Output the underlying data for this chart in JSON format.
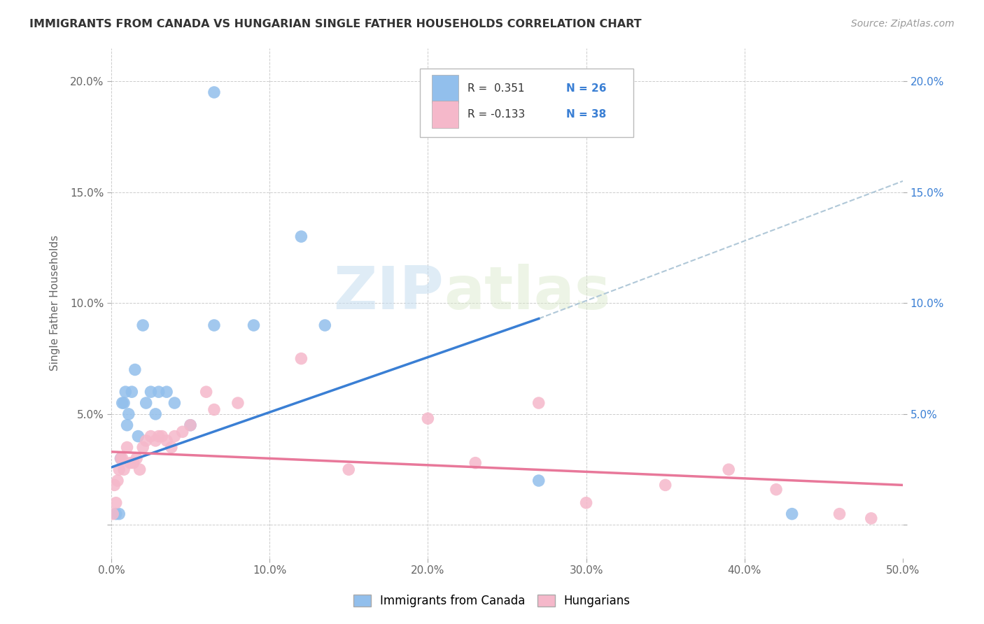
{
  "title": "IMMIGRANTS FROM CANADA VS HUNGARIAN SINGLE FATHER HOUSEHOLDS CORRELATION CHART",
  "source": "Source: ZipAtlas.com",
  "ylabel": "Single Father Households",
  "xlim": [
    0,
    0.5
  ],
  "ylim": [
    -0.015,
    0.215
  ],
  "yticks": [
    0.0,
    0.05,
    0.1,
    0.15,
    0.2
  ],
  "ytick_labels": [
    "",
    "5.0%",
    "10.0%",
    "15.0%",
    "20.0%"
  ],
  "xticks": [
    0.0,
    0.1,
    0.2,
    0.3,
    0.4,
    0.5
  ],
  "xtick_labels": [
    "0.0%",
    "10.0%",
    "20.0%",
    "30.0%",
    "40.0%",
    "50.0%"
  ],
  "canada_color": "#92bfec",
  "hungarian_color": "#f5b8ca",
  "canada_line_color": "#3a7fd4",
  "hungarian_line_color": "#e8789a",
  "dashed_line_color": "#b0c8d8",
  "legend_r_canada": "R =  0.351",
  "legend_n_canada": "N = 26",
  "legend_r_hungarian": "R = -0.133",
  "legend_n_hungarian": "N = 38",
  "watermark_zip": "ZIP",
  "watermark_atlas": "atlas",
  "canada_line_x": [
    0.0,
    0.27
  ],
  "canada_line_y": [
    0.026,
    0.093
  ],
  "hungarian_line_x": [
    0.0,
    0.5
  ],
  "hungarian_line_y": [
    0.033,
    0.018
  ],
  "dashed_line_x": [
    0.27,
    0.5
  ],
  "dashed_line_y": [
    0.093,
    0.155
  ],
  "canada_x": [
    0.003,
    0.005,
    0.006,
    0.007,
    0.008,
    0.009,
    0.01,
    0.011,
    0.013,
    0.015,
    0.017,
    0.02,
    0.022,
    0.025,
    0.028,
    0.03,
    0.035,
    0.04,
    0.05,
    0.065,
    0.09,
    0.12,
    0.135,
    0.27,
    0.43,
    0.065
  ],
  "canada_y": [
    0.005,
    0.005,
    0.03,
    0.055,
    0.055,
    0.06,
    0.045,
    0.05,
    0.06,
    0.07,
    0.04,
    0.09,
    0.055,
    0.06,
    0.05,
    0.06,
    0.06,
    0.055,
    0.045,
    0.09,
    0.09,
    0.13,
    0.09,
    0.02,
    0.005,
    0.195
  ],
  "hungarian_x": [
    0.001,
    0.002,
    0.003,
    0.004,
    0.005,
    0.006,
    0.007,
    0.008,
    0.01,
    0.012,
    0.014,
    0.016,
    0.018,
    0.02,
    0.022,
    0.025,
    0.028,
    0.03,
    0.032,
    0.035,
    0.038,
    0.04,
    0.045,
    0.05,
    0.06,
    0.065,
    0.08,
    0.12,
    0.15,
    0.2,
    0.23,
    0.27,
    0.3,
    0.35,
    0.39,
    0.42,
    0.46,
    0.48
  ],
  "hungarian_y": [
    0.005,
    0.018,
    0.01,
    0.02,
    0.025,
    0.03,
    0.03,
    0.025,
    0.035,
    0.028,
    0.028,
    0.03,
    0.025,
    0.035,
    0.038,
    0.04,
    0.038,
    0.04,
    0.04,
    0.038,
    0.035,
    0.04,
    0.042,
    0.045,
    0.06,
    0.052,
    0.055,
    0.075,
    0.025,
    0.048,
    0.028,
    0.055,
    0.01,
    0.018,
    0.025,
    0.016,
    0.005,
    0.003
  ]
}
